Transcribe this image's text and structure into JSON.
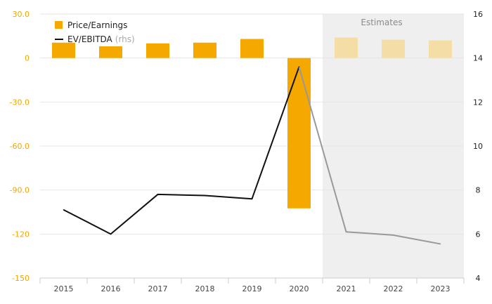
{
  "chart_data": {
    "type": "bar+line",
    "categories": [
      "2015",
      "2016",
      "2017",
      "2018",
      "2019",
      "2020",
      "2021",
      "2022",
      "2023"
    ],
    "estimates_label": "Estimates",
    "estimate_categories": [
      "2021",
      "2022",
      "2023"
    ],
    "series": [
      {
        "name": "Price/Earnings",
        "type": "bar",
        "axis": "left",
        "values": [
          10.5,
          8.0,
          10.0,
          10.5,
          13.0,
          -102.5,
          14.0,
          12.5,
          12.0
        ],
        "color": "#f5a800",
        "estimate_color": "#f5dda6"
      },
      {
        "name": "EV/EBITDA",
        "name_suffix": "(rhs)",
        "type": "line",
        "axis": "right",
        "values": [
          7.1,
          6.0,
          7.8,
          7.75,
          7.6,
          13.6,
          6.1,
          5.95,
          5.55
        ],
        "color": "#111111",
        "estimate_color": "#999999"
      }
    ],
    "y_left": {
      "min": -150,
      "max": 30,
      "ticks": [
        30,
        0,
        -30,
        -60,
        -90,
        -120,
        -150
      ],
      "tick_labels": [
        "30.0",
        "0",
        "-30.0",
        "-60.0",
        "-90.0",
        "-120",
        "-150"
      ]
    },
    "y_right": {
      "min": 4,
      "max": 16,
      "ticks": [
        16,
        14,
        12,
        10,
        8,
        6,
        4
      ],
      "tick_labels": [
        "16",
        "14",
        "12",
        "10",
        "8",
        "6",
        "4"
      ]
    },
    "grid": true,
    "legend_position": "top-left"
  },
  "colors": {
    "left_axis_text": "#f0a500",
    "grid": "#e6e6e6",
    "estimate_band": "#efefef"
  }
}
